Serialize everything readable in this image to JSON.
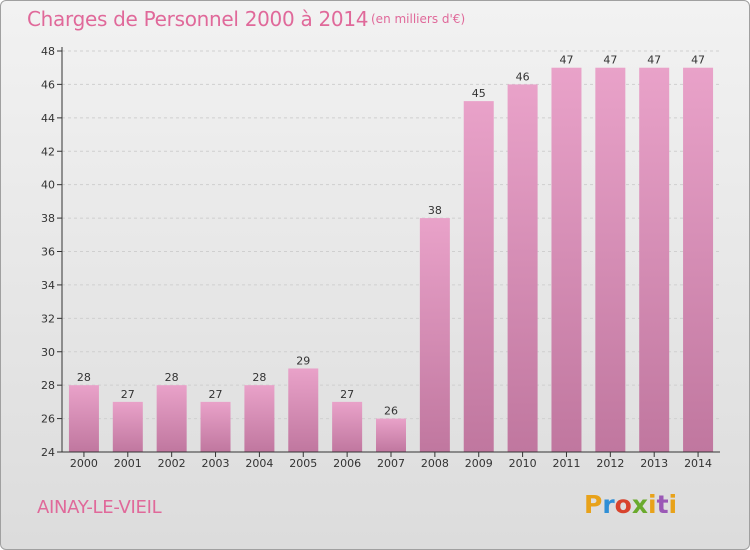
{
  "header": {
    "title": "Charges de Personnel 2000 à 2014",
    "unit": "(en milliers d'€)"
  },
  "footer": {
    "commune": "AINAY-LE-VIEIL"
  },
  "logo": {
    "text": "Proxiti",
    "colors": [
      "#e8a21a",
      "#2f8fd6",
      "#d8432d",
      "#6aaa2d",
      "#e8a21a",
      "#9b59b6",
      "#e8a21a"
    ]
  },
  "colors": {
    "accent": "#e0699a",
    "bar_top": "#e9a2c9",
    "bar_bottom": "#c0779f",
    "axis": "#333333",
    "grid": "#cfcfcf"
  },
  "chart_data": {
    "type": "bar",
    "title": "Charges de Personnel 2000 à 2014",
    "subtitle": "(en milliers d'€)",
    "categories": [
      "2000",
      "2001",
      "2002",
      "2003",
      "2004",
      "2005",
      "2006",
      "2007",
      "2008",
      "2009",
      "2010",
      "2011",
      "2012",
      "2013",
      "2014"
    ],
    "values": [
      28,
      27,
      28,
      27,
      28,
      29,
      27,
      26,
      38,
      45,
      46,
      47,
      47,
      47,
      47
    ],
    "ylim": [
      24,
      48
    ],
    "yticks": [
      24,
      26,
      28,
      30,
      32,
      34,
      36,
      38,
      40,
      42,
      44,
      46,
      48
    ],
    "grid": true,
    "data_labels": true
  }
}
